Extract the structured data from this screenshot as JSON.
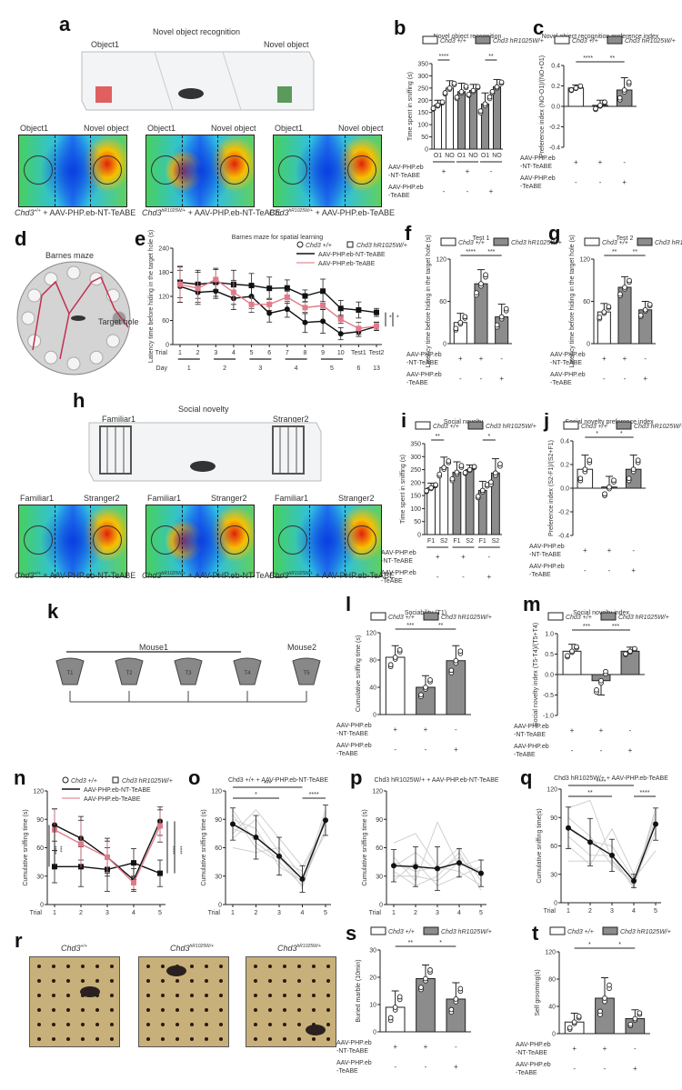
{
  "panels": {
    "a": {
      "letter": "a",
      "title": "Novel object recognition",
      "left_label": "Object1",
      "right_label": "Novel object",
      "heatmaps": [
        {
          "left": "Object1",
          "right": "Novel object",
          "genotype": "Chd3",
          "sup": "+/+",
          "treatment": "+ AAV-PHP.eb-NT-TeABE",
          "hot": "right"
        },
        {
          "left": "Object1",
          "right": "Novel object",
          "genotype": "Chd3",
          "sup": "hR1025W/+",
          "treatment": "+ AAV-PHP.eb-NT-TeABE",
          "hot": "both"
        },
        {
          "left": "Object1",
          "right": "Novel object",
          "genotype": "Chd3",
          "sup": "hR1025W/+",
          "treatment": "+ AAV-PHP.eb-TeABE",
          "hot": "right"
        }
      ]
    },
    "d": {
      "letter": "d",
      "title": "Barnes maze",
      "target": "Target hole"
    },
    "h": {
      "letter": "h",
      "title": "Social novelty",
      "left_label": "Familiar1",
      "right_label": "Stranger2",
      "heatmaps": [
        {
          "left": "Familiar1",
          "right": "Stranger2",
          "genotype": "Chd3",
          "sup": "+/+",
          "treatment": "+ AAV-PHP.eb-NT-TeABE",
          "hot": "right"
        },
        {
          "left": "Familiar1",
          "right": "Stranger2",
          "genotype": "Chd3",
          "sup": "hR1025W/+",
          "treatment": "+ AAV-PHP.eb-NT-TeABE",
          "hot": "both"
        },
        {
          "left": "Familiar1",
          "right": "Stranger2",
          "genotype": "Chd3",
          "sup": "hR1025W/+",
          "treatment": "+ AAV-PHP.eb-TeABE",
          "hot": "right"
        }
      ]
    },
    "k": {
      "letter": "k",
      "group1": "Mouse1",
      "group2": "Mouse2",
      "trials": [
        "T1",
        "T2",
        "T3",
        "T4",
        "T5"
      ]
    },
    "r": {
      "letter": "r",
      "images": [
        {
          "genotype": "Chd3",
          "sup": "+/+",
          "side": "AAV-PHP.eb-NT-TeABE"
        },
        {
          "genotype": "Chd3",
          "sup": "hR1025W/+",
          "side": "AAV-PHP.eb-NT-TeABE"
        },
        {
          "genotype": "Chd3",
          "sup": "hR1025W/+",
          "side": "AAV-PHP.eb-TeABE"
        }
      ]
    }
  },
  "legend": {
    "wt": "Chd3",
    "wt_sup": "+/+",
    "mut": "Chd3",
    "mut_sup": "hR1025W/+"
  },
  "treatment_rows": {
    "row1": "AAV-PHP.eb\n-NT-TeABE",
    "row1a": "AAV-PHP.eb",
    "row1b": "-NT-TeABE",
    "row2a": "AAV-PHP.eb",
    "row2b": "-TeABE",
    "row1_signs": [
      "+",
      "+",
      "-"
    ],
    "row2_signs": [
      "-",
      "-",
      "+"
    ]
  },
  "colors": {
    "wt_bar": "#ffffff",
    "mut_bar": "#8c8c8c",
    "nt_line": "#111111",
    "teabe_line": "#e8a0a8",
    "teabe_marker": "#e07b8a",
    "heat_hot": "#e0201a",
    "heat_cold": "#0a2fd8"
  },
  "chart_data": [
    {
      "id": "b",
      "type": "bar",
      "title": "Novel object recognition",
      "ylabel": "Time spent in sniffing (s)",
      "ylim": [
        0,
        350
      ],
      "yticks": [
        0,
        50,
        100,
        150,
        200,
        250,
        300,
        350
      ],
      "categories": [
        "O1",
        "NO",
        "O1",
        "NO",
        "O1",
        "NO"
      ],
      "groups": [
        "wt",
        "wt",
        "mut",
        "mut",
        "mut",
        "mut"
      ],
      "values": [
        180,
        250,
        235,
        240,
        185,
        255
      ],
      "errors": [
        20,
        30,
        35,
        25,
        45,
        30
      ],
      "significance": [
        {
          "from": 0,
          "to": 1,
          "label": "****"
        },
        {
          "from": 4,
          "to": 5,
          "label": "**"
        }
      ],
      "treatment_signs_row1": [
        "+",
        "+",
        "-"
      ],
      "treatment_signs_row2": [
        "-",
        "-",
        "+"
      ]
    },
    {
      "id": "c",
      "type": "bar",
      "title": "Novel object recognition preference index",
      "ylabel": "Preference index (NO-O1)/(NO+O1)",
      "ylim": [
        -0.4,
        0.4
      ],
      "yticks": [
        -0.4,
        -0.2,
        0.0,
        0.2,
        0.4
      ],
      "categories": [
        "1",
        "2",
        "3"
      ],
      "groups": [
        "wt",
        "mut",
        "mut"
      ],
      "values": [
        0.18,
        0.01,
        0.16
      ],
      "errors": [
        0.03,
        0.05,
        0.12
      ],
      "significance": [
        {
          "from": 0,
          "to": 1,
          "label": "****"
        },
        {
          "from": 1,
          "to": 2,
          "label": "**"
        }
      ],
      "treatment_signs_row1": [
        "+",
        "+",
        "-"
      ],
      "treatment_signs_row2": [
        "-",
        "-",
        "+"
      ]
    },
    {
      "id": "e",
      "type": "line",
      "title": "Barnes maze for spatial learning",
      "ylabel": "Latency time before hiding in the target hole (s)",
      "ylim": [
        0,
        240
      ],
      "yticks": [
        0,
        60,
        120,
        180,
        240
      ],
      "x": [
        "1",
        "2",
        "3",
        "4",
        "5",
        "6",
        "7",
        "8",
        "9",
        "10",
        "Test1",
        "Test2"
      ],
      "day_labels": [
        "1",
        "2",
        "3",
        "4",
        "5",
        "6",
        "13"
      ],
      "xlabel_trial": "Trial",
      "xlabel_day": "Day",
      "legend": [
        "Chd3 +/+",
        "Chd3 hR1025W/+",
        "AAV-PHP.eb-NT-TeABE",
        "AAV-PHP.eb-TeABE"
      ],
      "series": [
        {
          "name": "Chd3 +/+ NT-TeABE",
          "marker": "circle",
          "color": "#111111",
          "values": [
            145,
            130,
            133,
            115,
            120,
            78,
            88,
            55,
            58,
            27,
            32,
            45
          ],
          "errors": [
            40,
            25,
            18,
            28,
            30,
            22,
            20,
            25,
            30,
            15,
            12,
            10
          ]
        },
        {
          "name": "Chd3 hR1025W/+ NT-TeABE",
          "marker": "square",
          "color": "#111111",
          "values": [
            155,
            150,
            155,
            150,
            147,
            140,
            141,
            121,
            133,
            90,
            86,
            80
          ],
          "errors": [
            38,
            35,
            35,
            35,
            30,
            28,
            20,
            15,
            30,
            20,
            20,
            10
          ]
        },
        {
          "name": "Chd3 hR1025W/+ TeABE",
          "marker": "square",
          "color": "#e07b8a",
          "values": [
            150,
            140,
            162,
            130,
            100,
            100,
            118,
            92,
            97,
            63,
            40,
            46
          ],
          "errors": [
            45,
            40,
            25,
            30,
            20,
            15,
            15,
            15,
            10,
            10,
            15,
            10
          ]
        }
      ],
      "significance": [
        "*",
        "*"
      ]
    },
    {
      "id": "f",
      "type": "bar",
      "title": "Test 1",
      "ylabel": "Latency time before hiding in the target hole (s)",
      "ylim": [
        0,
        120
      ],
      "yticks": [
        0,
        60,
        120
      ],
      "categories": [
        "1",
        "2",
        "3"
      ],
      "groups": [
        "wt",
        "mut",
        "mut"
      ],
      "values": [
        30,
        85,
        38
      ],
      "errors": [
        13,
        20,
        18
      ],
      "significance": [
        {
          "from": 0,
          "to": 1,
          "label": "****"
        },
        {
          "from": 1,
          "to": 2,
          "label": "***"
        }
      ]
    },
    {
      "id": "g",
      "type": "bar",
      "title": "Test 2",
      "ylabel": "Latency time before hiding in the target hole (s)",
      "ylim": [
        0,
        120
      ],
      "yticks": [
        0,
        60,
        120
      ],
      "categories": [
        "1",
        "2",
        "3"
      ],
      "groups": [
        "wt",
        "mut",
        "mut"
      ],
      "values": [
        45,
        80,
        48
      ],
      "errors": [
        12,
        15,
        12
      ],
      "significance": [
        {
          "from": 0,
          "to": 1,
          "label": "**"
        },
        {
          "from": 1,
          "to": 2,
          "label": "**"
        }
      ]
    },
    {
      "id": "i",
      "type": "bar",
      "title": "Social novelty",
      "ylabel": "Time spent in sniffing (s)",
      "ylim": [
        0,
        350
      ],
      "yticks": [
        0,
        50,
        100,
        150,
        200,
        250,
        300,
        350
      ],
      "categories": [
        "F1",
        "S2",
        "F1",
        "S2",
        "F1",
        "S2"
      ],
      "groups": [
        "wt",
        "wt",
        "mut",
        "mut",
        "mut",
        "mut"
      ],
      "values": [
        180,
        258,
        240,
        250,
        170,
        237
      ],
      "errors": [
        18,
        40,
        40,
        18,
        35,
        55
      ],
      "significance": [
        {
          "from": 0,
          "to": 1,
          "label": "**"
        },
        {
          "from": 4,
          "to": 5,
          "label": "*"
        }
      ]
    },
    {
      "id": "j",
      "type": "bar",
      "title": "Social novelty preference index",
      "ylabel": "Preference index (S2-F1)/(S2+F1)",
      "ylim": [
        -0.4,
        0.4
      ],
      "yticks": [
        -0.4,
        -0.2,
        0.0,
        0.2,
        0.4
      ],
      "categories": [
        "1",
        "2",
        "3"
      ],
      "groups": [
        "wt",
        "mut",
        "mut"
      ],
      "values": [
        0.16,
        0.01,
        0.16
      ],
      "errors": [
        0.12,
        0.09,
        0.12
      ],
      "significance": [
        {
          "from": 0,
          "to": 1,
          "label": "*"
        },
        {
          "from": 1,
          "to": 2,
          "label": "*"
        }
      ]
    },
    {
      "id": "l",
      "type": "bar",
      "title": "Sociability (T1)",
      "ylabel": "Cumulative sniffing time (s)",
      "ylim": [
        0,
        120
      ],
      "yticks": [
        0,
        40,
        80,
        120
      ],
      "categories": [
        "1",
        "2",
        "3"
      ],
      "groups": [
        "wt",
        "mut",
        "mut"
      ],
      "values": [
        84,
        40,
        79
      ],
      "errors": [
        17,
        17,
        22
      ],
      "significance": [
        {
          "from": 0,
          "to": 1,
          "label": "***"
        },
        {
          "from": 1,
          "to": 2,
          "label": "**"
        }
      ]
    },
    {
      "id": "m",
      "type": "bar",
      "title": "Social novelty index",
      "ylabel": "Social novelty index (T5-T4)/(T5+T4)",
      "ylim": [
        -1.0,
        1.0
      ],
      "yticks": [
        -1.0,
        -0.5,
        0.0,
        0.5,
        1.0
      ],
      "categories": [
        "1",
        "2",
        "3"
      ],
      "groups": [
        "wt",
        "mut",
        "mut"
      ],
      "values": [
        0.57,
        -0.15,
        0.57
      ],
      "errors": [
        0.17,
        0.35,
        0.1
      ],
      "significance": [
        {
          "from": 0,
          "to": 1,
          "label": "***"
        },
        {
          "from": 1,
          "to": 2,
          "label": "***"
        }
      ]
    },
    {
      "id": "n",
      "type": "line",
      "ylabel": "Cumulative sniffing time (s)",
      "ylim": [
        0,
        120
      ],
      "yticks": [
        0,
        30,
        60,
        90,
        120
      ],
      "x": [
        "1",
        "2",
        "3",
        "4",
        "5"
      ],
      "xlabel": "Trial",
      "legend": [
        "Chd3 +/+",
        "Chd3 hR1025W/+",
        "AAV-PHP.eb-NT-TeABE",
        "AAV-PHP.eb-TeABE"
      ],
      "series": [
        {
          "name": "Chd3 +/+ NT-TeABE",
          "marker": "circle",
          "color": "#111111",
          "values": [
            84,
            70,
            50,
            26,
            88
          ],
          "errors": [
            17,
            23,
            20,
            12,
            15
          ]
        },
        {
          "name": "Chd3 hR1025W/+ NT-TeABE",
          "marker": "square",
          "color": "#111111",
          "values": [
            40,
            40,
            37,
            44,
            33
          ],
          "errors": [
            17,
            21,
            23,
            15,
            14
          ]
        },
        {
          "name": "Chd3 hR1025W/+ TeABE",
          "marker": "square",
          "color": "#e07b8a",
          "values": [
            79,
            64,
            50,
            23,
            83
          ],
          "errors": [
            22,
            25,
            17,
            7,
            17
          ]
        }
      ],
      "significance_left": [
        "****",
        "***"
      ],
      "significance_right": [
        "****",
        "****"
      ]
    },
    {
      "id": "o",
      "type": "line",
      "title": "Chd3 +/+ + AAV-PHP.eb-NT-TeABE",
      "ylabel": "Cumulative sniffing time (s)",
      "ylim": [
        0,
        120
      ],
      "yticks": [
        0,
        30,
        60,
        90,
        120
      ],
      "x": [
        "1",
        "2",
        "3",
        "4",
        "5"
      ],
      "xlabel": "Trial",
      "series": [
        {
          "name": "mean",
          "values": [
            85,
            71,
            51,
            27,
            89
          ],
          "errors": [
            17,
            23,
            20,
            14,
            16
          ]
        }
      ],
      "individuals": [
        [
          95,
          60,
          45,
          20,
          95
        ],
        [
          75,
          100,
          70,
          40,
          85
        ],
        [
          90,
          80,
          40,
          25,
          100
        ],
        [
          60,
          55,
          60,
          30,
          75
        ],
        [
          80,
          72,
          52,
          18,
          92
        ],
        [
          100,
          65,
          48,
          35,
          88
        ],
        [
          70,
          90,
          55,
          22,
          80
        ]
      ],
      "significance": [
        {
          "from": 0,
          "to": 2,
          "label": "*"
        },
        {
          "from": 0,
          "to": 3,
          "label": "***"
        },
        {
          "from": 3,
          "to": 4,
          "label": "****"
        }
      ]
    },
    {
      "id": "p",
      "type": "line",
      "title": "Chd3 hR1025W/+ + AAV-PHP.eb-NT-TeABE",
      "ylabel": "Cumulative sniffing time (s)",
      "ylim": [
        0,
        120
      ],
      "yticks": [
        0,
        30,
        60,
        90,
        120
      ],
      "x": [
        "1",
        "2",
        "3",
        "4",
        "5"
      ],
      "xlabel": "Trial",
      "series": [
        {
          "name": "mean",
          "values": [
            41,
            40,
            38,
            44,
            33
          ],
          "errors": [
            17,
            21,
            23,
            15,
            14
          ]
        }
      ],
      "individuals": [
        [
          65,
          75,
          40,
          60,
          25
        ],
        [
          50,
          25,
          87,
          40,
          48
        ],
        [
          35,
          20,
          30,
          55,
          15
        ],
        [
          25,
          45,
          20,
          30,
          40
        ],
        [
          40,
          55,
          35,
          50,
          30
        ],
        [
          30,
          30,
          25,
          45,
          35
        ],
        [
          45,
          35,
          40,
          35,
          20
        ]
      ],
      "significance": []
    },
    {
      "id": "q",
      "type": "line",
      "title": "Chd3 hR1025W/+ + AAV-PHP.eb-TeABE",
      "ylabel": "Cumulative sniffing time(s)",
      "ylim": [
        0,
        120
      ],
      "yticks": [
        0,
        30,
        60,
        90,
        120
      ],
      "x": [
        "1",
        "2",
        "3",
        "4",
        "5"
      ],
      "xlabel": "Trial",
      "series": [
        {
          "name": "mean",
          "values": [
            79,
            64,
            50,
            23,
            83
          ],
          "errors": [
            22,
            25,
            17,
            7,
            17
          ]
        }
      ],
      "individuals": [
        [
          100,
          108,
          45,
          20,
          95
        ],
        [
          60,
          40,
          78,
          30,
          85
        ],
        [
          44,
          44,
          44,
          18,
          100
        ],
        [
          80,
          65,
          60,
          25,
          55
        ],
        [
          90,
          70,
          40,
          22,
          75
        ],
        [
          70,
          50,
          50,
          15,
          90
        ]
      ],
      "significance": [
        {
          "from": 0,
          "to": 2,
          "label": "**"
        },
        {
          "from": 0,
          "to": 3,
          "label": "****"
        },
        {
          "from": 3,
          "to": 4,
          "label": "****"
        }
      ]
    },
    {
      "id": "s",
      "type": "bar",
      "ylabel": "Buried marble (10min)",
      "ylim": [
        0,
        30
      ],
      "yticks": [
        0,
        10,
        20,
        30
      ],
      "categories": [
        "1",
        "2",
        "3"
      ],
      "groups": [
        "wt",
        "mut",
        "mut"
      ],
      "values": [
        9,
        19.5,
        12
      ],
      "errors": [
        6,
        5,
        6
      ],
      "significance": [
        {
          "from": 0,
          "to": 1,
          "label": "**"
        },
        {
          "from": 1,
          "to": 2,
          "label": "*"
        }
      ]
    },
    {
      "id": "t",
      "type": "bar",
      "ylabel": "Self grooming(s)",
      "ylim": [
        0,
        120
      ],
      "yticks": [
        0,
        40,
        80,
        120
      ],
      "categories": [
        "1",
        "2",
        "3"
      ],
      "groups": [
        "wt",
        "mut",
        "mut"
      ],
      "values": [
        17,
        52,
        22
      ],
      "errors": [
        13,
        30,
        13
      ],
      "significance": [
        {
          "from": 0,
          "to": 1,
          "label": "*"
        },
        {
          "from": 1,
          "to": 2,
          "label": "*"
        }
      ]
    }
  ]
}
